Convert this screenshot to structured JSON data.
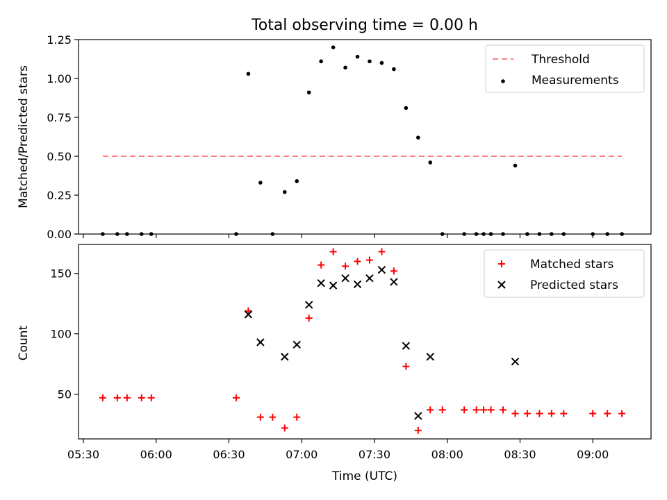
{
  "figure": {
    "title": "Total observing time = 0.00 h",
    "xlabel": "Time (UTC)"
  },
  "chart_data": [
    {
      "type": "scatter",
      "title": "Total observing time = 0.00 h",
      "xlabel": "Time (UTC)",
      "ylabel": "Matched/Predicted stars",
      "xlim": [
        "05:28",
        "09:24"
      ],
      "ylim": [
        0,
        1.25
      ],
      "y_ticks": [
        0,
        0.25,
        0.5,
        0.75,
        1.0,
        1.25
      ],
      "y_tick_labels": [
        "0.00",
        "0.25",
        "0.50",
        "0.75",
        "1.00",
        "1.25"
      ],
      "legend_position": "top-right",
      "series": [
        {
          "name": "Threshold",
          "style": "dashed-line",
          "color": "#ff7f7f",
          "x": [
            "05:38",
            "09:12"
          ],
          "y": [
            0.5,
            0.5
          ]
        },
        {
          "name": "Measurements",
          "style": "dot",
          "color": "#000000",
          "x": [
            "05:38",
            "05:44",
            "05:48",
            "05:54",
            "05:58",
            "06:33",
            "06:38",
            "06:43",
            "06:48",
            "06:53",
            "06:58",
            "07:03",
            "07:08",
            "07:13",
            "07:18",
            "07:23",
            "07:28",
            "07:33",
            "07:38",
            "07:43",
            "07:48",
            "07:53",
            "07:58",
            "08:07",
            "08:12",
            "08:15",
            "08:18",
            "08:23",
            "08:28",
            "08:33",
            "08:38",
            "08:43",
            "08:48",
            "09:00",
            "09:06",
            "09:12"
          ],
          "y": [
            0,
            0,
            0,
            0,
            0,
            0,
            1.03,
            0.33,
            0,
            0.27,
            0.34,
            0.91,
            1.11,
            1.2,
            1.07,
            1.14,
            1.11,
            1.1,
            1.06,
            0.81,
            0.62,
            0.46,
            0,
            0,
            0,
            0,
            0,
            0,
            0.44,
            0,
            0,
            0,
            0,
            0,
            0,
            0
          ]
        }
      ]
    },
    {
      "type": "scatter",
      "xlabel": "Time (UTC)",
      "ylabel": "Count",
      "xlim": [
        "05:28",
        "09:24"
      ],
      "ylim": [
        13,
        174
      ],
      "y_ticks": [
        50,
        100,
        150
      ],
      "y_tick_labels": [
        "50",
        "100",
        "150"
      ],
      "x_ticks": [
        "05:30",
        "06:00",
        "06:30",
        "07:00",
        "07:30",
        "08:00",
        "08:30",
        "09:00"
      ],
      "x_tick_labels": [
        "05:30",
        "06:00",
        "06:30",
        "07:00",
        "07:30",
        "08:00",
        "08:30",
        "09:00"
      ],
      "legend_position": "top-right",
      "series": [
        {
          "name": "Matched stars",
          "marker": "plus",
          "color": "#ff0000",
          "x": [
            "05:38",
            "05:44",
            "05:48",
            "05:54",
            "05:58",
            "06:33",
            "06:38",
            "06:43",
            "06:48",
            "06:53",
            "06:58",
            "07:03",
            "07:08",
            "07:13",
            "07:18",
            "07:23",
            "07:28",
            "07:33",
            "07:38",
            "07:43",
            "07:48",
            "07:53",
            "07:58",
            "08:07",
            "08:12",
            "08:15",
            "08:18",
            "08:23",
            "08:28",
            "08:33",
            "08:38",
            "08:43",
            "08:48",
            "09:00",
            "09:06",
            "09:12"
          ],
          "y": [
            47,
            47,
            47,
            47,
            47,
            47,
            119,
            31,
            31,
            22,
            31,
            113,
            157,
            168,
            156,
            160,
            161,
            168,
            152,
            73,
            20,
            37,
            37,
            37,
            37,
            37,
            37,
            37,
            34,
            34,
            34,
            34,
            34,
            34,
            34,
            34
          ]
        },
        {
          "name": "Predicted stars",
          "marker": "x",
          "color": "#000000",
          "x": [
            "06:38",
            "06:43",
            "06:53",
            "06:58",
            "07:03",
            "07:08",
            "07:13",
            "07:18",
            "07:23",
            "07:28",
            "07:33",
            "07:38",
            "07:43",
            "07:48",
            "07:53",
            "08:28"
          ],
          "y": [
            116,
            93,
            81,
            91,
            124,
            142,
            140,
            146,
            141,
            146,
            153,
            143,
            90,
            32,
            81,
            77
          ]
        }
      ]
    }
  ]
}
